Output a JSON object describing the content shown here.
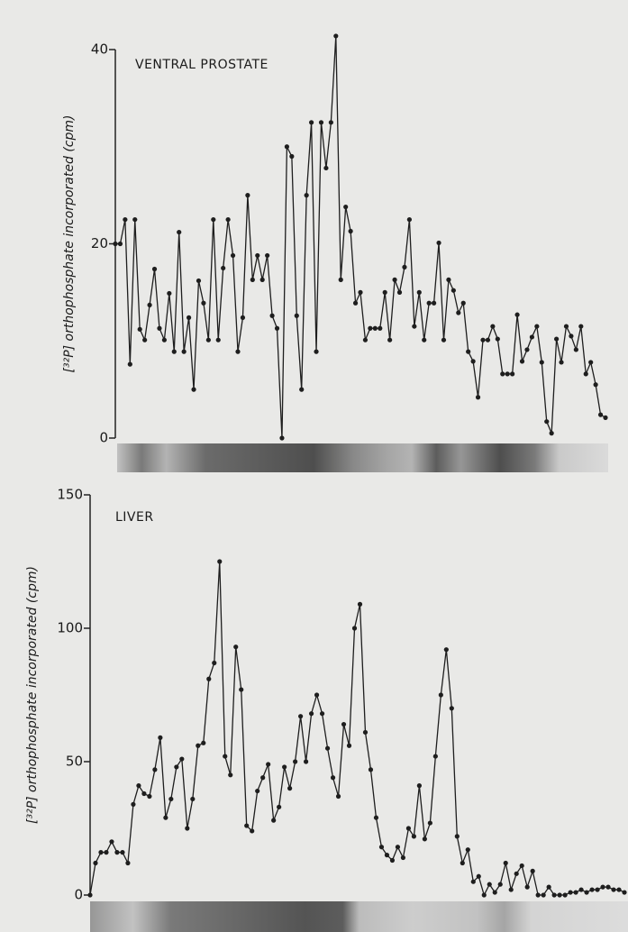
{
  "chart_data": [
    {
      "type": "line",
      "title": "VENTRAL PROSTATE",
      "y_label": "[³²P] orthophosphate incorporated (cpm)",
      "ylim": [
        0,
        40
      ],
      "yticks": [
        0,
        20,
        40
      ],
      "color": "#1e1e1e",
      "values": [
        20,
        20,
        22.5,
        7.6,
        22.5,
        11.2,
        10.1,
        13.7,
        17.4,
        11.3,
        10.1,
        14.9,
        8.9,
        21.2,
        8.9,
        12.4,
        5,
        16.2,
        13.9,
        10.1,
        22.5,
        10.1,
        17.5,
        22.5,
        18.8,
        8.9,
        12.4,
        25,
        16.3,
        18.8,
        16.3,
        18.8,
        12.6,
        11.3,
        0,
        30,
        29,
        12.6,
        5,
        25,
        32.5,
        8.9,
        32.5,
        27.8,
        32.5,
        41.4,
        16.3,
        23.8,
        21.3,
        13.9,
        15,
        10.1,
        11.3,
        11.3,
        11.3,
        15,
        10.1,
        16.3,
        15,
        17.6,
        22.5,
        11.5,
        15,
        10.1,
        13.9,
        13.9,
        20.1,
        10.1,
        16.3,
        15.2,
        12.9,
        13.9,
        8.9,
        7.9,
        4.2,
        10.1,
        10.1,
        11.5,
        10.2,
        6.6,
        6.6,
        6.6,
        12.7,
        7.9,
        9.1,
        10.4,
        11.5,
        7.8,
        1.7,
        0.5,
        10.2,
        7.8,
        11.5,
        10.5,
        9.1,
        11.5,
        6.6,
        7.8,
        5.5,
        2.4,
        2.1
      ]
    },
    {
      "type": "line",
      "title": "LIVER",
      "y_label": "[³²P] orthophosphate incorporated (cpm)",
      "ylim": [
        0,
        150
      ],
      "yticks": [
        0,
        50,
        100,
        150
      ],
      "color": "#1e1e1e",
      "values": [
        0,
        12,
        16,
        16,
        20,
        16,
        16,
        12,
        34,
        41,
        38,
        37,
        47,
        59,
        29,
        36,
        48,
        51,
        25,
        36,
        56,
        57,
        81,
        87,
        125,
        52,
        45,
        93,
        77,
        26,
        24,
        39,
        44,
        49,
        28,
        33,
        48,
        40,
        50,
        67,
        50,
        68,
        75,
        68,
        55,
        44,
        37,
        64,
        56,
        100,
        109,
        61,
        47,
        29,
        18,
        15,
        13,
        18,
        14,
        25,
        22,
        41,
        21,
        27,
        52,
        75,
        92,
        70,
        22,
        12,
        17,
        5,
        7,
        0,
        4,
        1,
        4,
        12,
        2,
        8,
        11,
        3,
        9,
        0,
        0,
        3,
        0,
        0,
        0,
        1,
        1,
        2,
        1,
        2,
        2,
        3,
        3,
        2,
        2,
        1
      ]
    }
  ]
}
